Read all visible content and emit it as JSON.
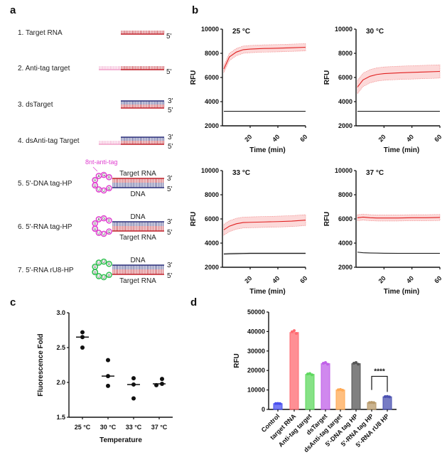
{
  "panels": {
    "a": "a",
    "b": "b",
    "c": "c",
    "d": "d"
  },
  "diagram": {
    "items": [
      {
        "label": "1. Target RNA",
        "type": "ss",
        "ends": [
          "5'"
        ]
      },
      {
        "label": "2. Anti-tag target",
        "type": "ss-tag",
        "ends": [
          "5'"
        ]
      },
      {
        "label": "3. dsTarget",
        "type": "ds",
        "ends": [
          "3'",
          "5'"
        ]
      },
      {
        "label": "4. dsAnti-tag Target",
        "type": "ds-tag",
        "ends": [
          "3'",
          "5'"
        ]
      },
      {
        "label": "5. 5'-DNA tag-HP",
        "type": "hp",
        "top": "Target RNA",
        "bottom": "DNA",
        "loop": [
          "U",
          "U",
          "A",
          "G",
          "U",
          "G",
          "U",
          "U",
          "U"
        ],
        "loop_color": "#e040d0",
        "ends": [
          "3'",
          "5'"
        ]
      },
      {
        "label": "6. 5'-RNA tag-HP",
        "type": "hp",
        "top": "DNA",
        "bottom": "Target RNA",
        "loop": [
          "U",
          "U",
          "A",
          "G",
          "U",
          "G",
          "U",
          "U",
          "U"
        ],
        "loop_color": "#e040d0",
        "ends": [
          "3'",
          "5'"
        ]
      },
      {
        "label": "7. 5'-RNA rU8-HP",
        "type": "hp",
        "top": "DNA",
        "bottom": "Target RNA",
        "loop": [
          "U",
          "U",
          "U",
          "U",
          "U",
          "U",
          "U",
          "U",
          "U"
        ],
        "loop_color": "#30c050",
        "ends": [
          "3'",
          "5'"
        ]
      }
    ],
    "annotation": "8nt-anti-tag",
    "colors": {
      "rna": "#c0202a",
      "dna": "#2a2f7a",
      "tag": "#f0a0c8",
      "annotation": "#e040d0"
    }
  },
  "chart_data": [
    {
      "type": "line",
      "panel": "b",
      "title": "25 °C",
      "xlabel": "Time (min)",
      "ylabel": "RFU",
      "xlim": [
        0,
        60
      ],
      "ylim": [
        2000,
        10000
      ],
      "xticks": [
        20,
        40,
        60
      ],
      "yticks": [
        2000,
        4000,
        6000,
        8000,
        10000
      ],
      "x": [
        1,
        5,
        10,
        15,
        20,
        30,
        40,
        50,
        60
      ],
      "series": [
        {
          "values": [
            6700,
            7700,
            8100,
            8300,
            8350,
            8400,
            8420,
            8460,
            8500
          ],
          "band": 300,
          "color": "#e02020"
        },
        {
          "values": [
            3200,
            3200,
            3200,
            3200,
            3200,
            3200,
            3200,
            3200,
            3200
          ],
          "band": 30,
          "color": "#222222"
        }
      ]
    },
    {
      "type": "line",
      "panel": "b",
      "title": "30 °C",
      "xlabel": "Time (min)",
      "ylabel": "RFU",
      "xlim": [
        0,
        60
      ],
      "ylim": [
        2000,
        10000
      ],
      "xticks": [
        20,
        40,
        60
      ],
      "yticks": [
        2000,
        4000,
        6000,
        8000,
        10000
      ],
      "x": [
        1,
        5,
        10,
        15,
        20,
        30,
        40,
        50,
        60
      ],
      "series": [
        {
          "values": [
            5200,
            5800,
            6100,
            6250,
            6320,
            6380,
            6420,
            6460,
            6500
          ],
          "band": 550,
          "color": "#e02020"
        },
        {
          "values": [
            3200,
            3200,
            3200,
            3200,
            3200,
            3200,
            3200,
            3200,
            3200
          ],
          "band": 30,
          "color": "#222222"
        }
      ]
    },
    {
      "type": "line",
      "panel": "b",
      "title": "33 °C",
      "xlabel": "Time (min)",
      "ylabel": "RFU",
      "xlim": [
        0,
        60
      ],
      "ylim": [
        2000,
        10000
      ],
      "xticks": [
        20,
        40,
        60
      ],
      "yticks": [
        2000,
        4000,
        6000,
        8000,
        10000
      ],
      "x": [
        1,
        5,
        10,
        15,
        20,
        30,
        40,
        50,
        60
      ],
      "series": [
        {
          "values": [
            5100,
            5400,
            5600,
            5700,
            5720,
            5750,
            5780,
            5820,
            5900
          ],
          "band": 450,
          "color": "#e02020"
        },
        {
          "values": [
            3100,
            3120,
            3130,
            3140,
            3150,
            3150,
            3150,
            3150,
            3150
          ],
          "band": 80,
          "color": "#222222"
        }
      ]
    },
    {
      "type": "line",
      "panel": "b",
      "title": "37 °C",
      "xlabel": "Time (min)",
      "ylabel": "RFU",
      "xlim": [
        0,
        60
      ],
      "ylim": [
        2000,
        10000
      ],
      "xticks": [
        20,
        40,
        60
      ],
      "yticks": [
        2000,
        4000,
        6000,
        8000,
        10000
      ],
      "x": [
        1,
        5,
        10,
        15,
        20,
        30,
        40,
        50,
        60
      ],
      "series": [
        {
          "values": [
            6100,
            6150,
            6100,
            6080,
            6080,
            6080,
            6100,
            6100,
            6120
          ],
          "band": 250,
          "color": "#e02020"
        },
        {
          "values": [
            3250,
            3200,
            3180,
            3170,
            3160,
            3150,
            3150,
            3150,
            3150
          ],
          "band": 30,
          "color": "#222222"
        }
      ]
    },
    {
      "type": "scatter",
      "panel": "c",
      "xlabel": "Temperature",
      "ylabel": "Fluorescence Fold",
      "ylim": [
        1.5,
        3.0
      ],
      "yticks": [
        1.5,
        2.0,
        2.5,
        3.0
      ],
      "categories": [
        "25 °C",
        "30 °C",
        "33 °C",
        "37 °C"
      ],
      "points": [
        [
          2.72,
          2.65,
          2.5
        ],
        [
          2.32,
          2.09,
          1.95
        ],
        [
          2.06,
          1.97,
          1.77
        ],
        [
          2.05,
          1.96,
          1.98
        ]
      ],
      "medians": [
        2.65,
        2.09,
        1.97,
        1.98
      ]
    },
    {
      "type": "bar",
      "panel": "d",
      "xlabel": "",
      "ylabel": "RFU",
      "ylim": [
        0,
        50000
      ],
      "yticks": [
        0,
        10000,
        20000,
        30000,
        40000,
        50000
      ],
      "categories": [
        "Control",
        "target RNA",
        "Anti-tag target",
        "dsTarget",
        "dsAnti-tag target",
        "5'-DNA tag HP",
        "5'-RNA tag HP",
        "5'-RNA rU8 HP"
      ],
      "values": [
        3000,
        39500,
        18000,
        23500,
        10000,
        23500,
        3500,
        6500
      ],
      "colors": [
        "#4a50f0",
        "#ff6a70",
        "#5ed85e",
        "#c060e8",
        "#ffaa55",
        "#555555",
        "#b89a6a",
        "#4a50b0"
      ],
      "significance": {
        "between": [
          6,
          7
        ],
        "label": "****"
      }
    }
  ]
}
